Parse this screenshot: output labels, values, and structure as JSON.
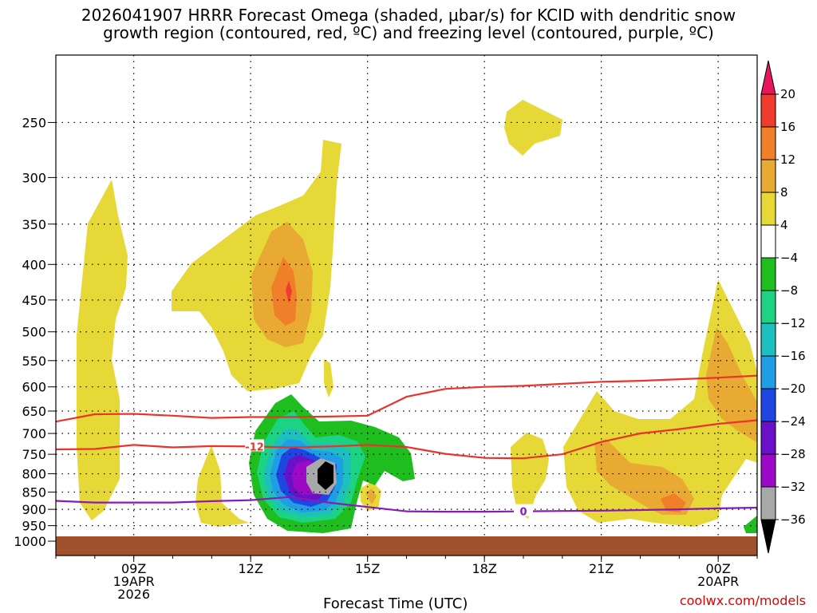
{
  "title_line1": "2026041907 HRRR Forecast Omega (shaded, μbar/s) for KCID with dendritic snow",
  "title_line2": "growth region (contoured, red, ºC) and freezing level (contoured, purple, ºC)",
  "credit": "coolwx.com/models",
  "chart_data": {
    "type": "heatmap",
    "title": "2026041907 HRRR Forecast Omega (shaded, μbar/s) for KCID with dendritic snow growth region (contoured, red, ºC) and freezing level (contoured, purple, ºC)",
    "xlabel": "Forecast Time (UTC)",
    "ylabel": "",
    "x_ticks": [
      {
        "hour": 9,
        "label": "09Z",
        "sub1": "19APR",
        "sub2": "2026"
      },
      {
        "hour": 12,
        "label": "12Z",
        "sub1": "",
        "sub2": ""
      },
      {
        "hour": 15,
        "label": "15Z",
        "sub1": "",
        "sub2": ""
      },
      {
        "hour": 18,
        "label": "18Z",
        "sub1": "",
        "sub2": ""
      },
      {
        "hour": 21,
        "label": "21Z",
        "sub1": "",
        "sub2": ""
      },
      {
        "hour": 24,
        "label": "00Z",
        "sub1": "20APR",
        "sub2": ""
      }
    ],
    "xlim": [
      7,
      25
    ],
    "y_ticks": [
      250,
      300,
      350,
      400,
      450,
      500,
      550,
      600,
      650,
      700,
      750,
      800,
      850,
      900,
      950,
      1000
    ],
    "ylim": [
      200,
      1000
    ],
    "y_scale": "log",
    "grid": true,
    "colorbar": {
      "labels": [
        "20",
        "16",
        "12",
        "8",
        "4",
        "−4",
        "−8",
        "−12",
        "−16",
        "−20",
        "−24",
        "−28",
        "−32",
        "−36"
      ],
      "colors": [
        "#e8175d",
        "#f03c2c",
        "#f07f2a",
        "#e8aa32",
        "#e6d836",
        "#ffffff",
        "#1fbe1f",
        "#1cd383",
        "#1ebfbf",
        "#1f9ee6",
        "#1f46e0",
        "#6a10c8",
        "#9c0ac8",
        "#a8a8a8",
        "#000000"
      ]
    },
    "contours": {
      "dendritic_red": [
        {
          "level": "-12",
          "points": [
            [
              7,
              738
            ],
            [
              8,
              737
            ],
            [
              9,
              727
            ],
            [
              10,
              733
            ],
            [
              11,
              730
            ],
            [
              12,
              731
            ],
            [
              13,
              733
            ],
            [
              14,
              731
            ],
            [
              15,
              727
            ],
            [
              16,
              732
            ],
            [
              17,
              749
            ],
            [
              18,
              759
            ],
            [
              19,
              760
            ],
            [
              20,
              750
            ],
            [
              21,
              720
            ],
            [
              22,
              700
            ],
            [
              23,
              690
            ],
            [
              24,
              678
            ],
            [
              25,
              670
            ]
          ]
        },
        {
          "level": "",
          "points": [
            [
              7,
              673
            ],
            [
              8,
              657
            ],
            [
              9,
              656
            ],
            [
              10,
              660
            ],
            [
              11,
              665
            ],
            [
              12,
              663
            ],
            [
              13,
              663
            ],
            [
              14,
              662
            ],
            [
              15,
              660
            ],
            [
              16,
              620
            ],
            [
              17,
              604
            ],
            [
              18,
              600
            ],
            [
              19,
              598
            ],
            [
              20,
              594
            ],
            [
              21,
              590
            ],
            [
              22,
              588
            ],
            [
              23,
              585
            ],
            [
              24,
              582
            ],
            [
              25,
              578
            ]
          ]
        }
      ],
      "freezing_purple": [
        {
          "level": "0",
          "points": [
            [
              7,
              875
            ],
            [
              8,
              880
            ],
            [
              9,
              880
            ],
            [
              10,
              880
            ],
            [
              11,
              876
            ],
            [
              12,
              873
            ],
            [
              13,
              864
            ],
            [
              14,
              880
            ],
            [
              15,
              893
            ],
            [
              16,
              906
            ],
            [
              17,
              907
            ],
            [
              18,
              907
            ],
            [
              19,
              906
            ],
            [
              20,
              905
            ],
            [
              21,
              904
            ],
            [
              22,
              902
            ],
            [
              23,
              900
            ],
            [
              24,
              897
            ],
            [
              25,
              895
            ]
          ]
        }
      ]
    }
  }
}
